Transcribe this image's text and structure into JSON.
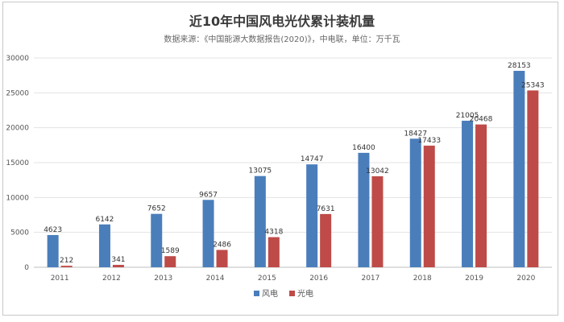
{
  "chart_data": {
    "type": "bar",
    "title": "近10年中国风电光伏累计装机量",
    "subtitle": "数据来源：《中国能源大数据报告(2020)》，中电联，单位：万千瓦",
    "categories": [
      "2011",
      "2012",
      "2013",
      "2014",
      "2015",
      "2016",
      "2017",
      "2018",
      "2019",
      "2020"
    ],
    "series": [
      {
        "name": "风电",
        "color": "#4a7ebb",
        "values": [
          4623,
          6142,
          7652,
          9657,
          13075,
          14747,
          16400,
          18427,
          21005,
          28153
        ]
      },
      {
        "name": "光电",
        "color": "#be4b48",
        "values": [
          212,
          341,
          1589,
          2486,
          4318,
          7631,
          13042,
          17433,
          20468,
          25343
        ]
      }
    ],
    "yticks": [
      0,
      5000,
      10000,
      15000,
      20000,
      25000,
      30000
    ],
    "ylim": [
      0,
      30000
    ],
    "grid": true,
    "legend_position": "bottom"
  }
}
